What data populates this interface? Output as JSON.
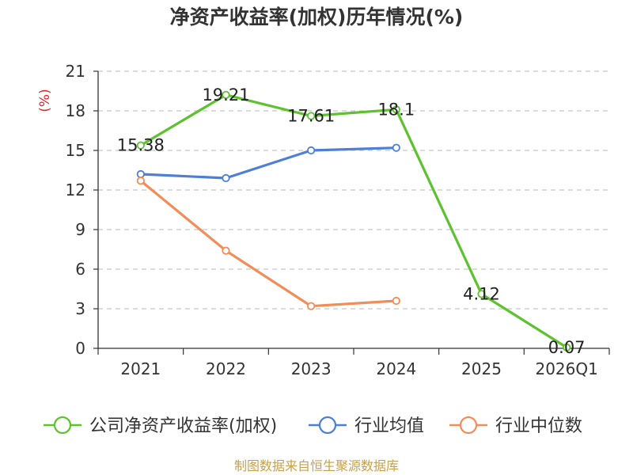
{
  "chart_data": {
    "type": "line",
    "title": "净资产收益率(加权)历年情况(%)",
    "ylabel": "(%)",
    "xlabel": "",
    "ylim": [
      0,
      21
    ],
    "yticks": [
      0,
      3,
      6,
      9,
      12,
      15,
      18,
      21
    ],
    "categories": [
      "2021",
      "2022",
      "2023",
      "2024",
      "2025",
      "2026Q1"
    ],
    "grid": true,
    "legend_position": "bottom",
    "series": [
      {
        "name": "公司净资产收益率(加权)",
        "color": "#5cc22e",
        "values": [
          15.38,
          19.21,
          17.61,
          18.1,
          4.12,
          0.07
        ],
        "labels": [
          "15.38",
          "19.21",
          "17.61",
          "18.1",
          "4.12",
          "0.07"
        ]
      },
      {
        "name": "行业均值",
        "color": "#4e7fd6",
        "values": [
          13.2,
          12.9,
          15.0,
          15.2,
          null,
          null
        ]
      },
      {
        "name": "行业中位数",
        "color": "#f28c58",
        "values": [
          12.7,
          7.4,
          3.2,
          3.6,
          null,
          null
        ]
      }
    ],
    "source": "制图数据来自恒生聚源数据库"
  }
}
